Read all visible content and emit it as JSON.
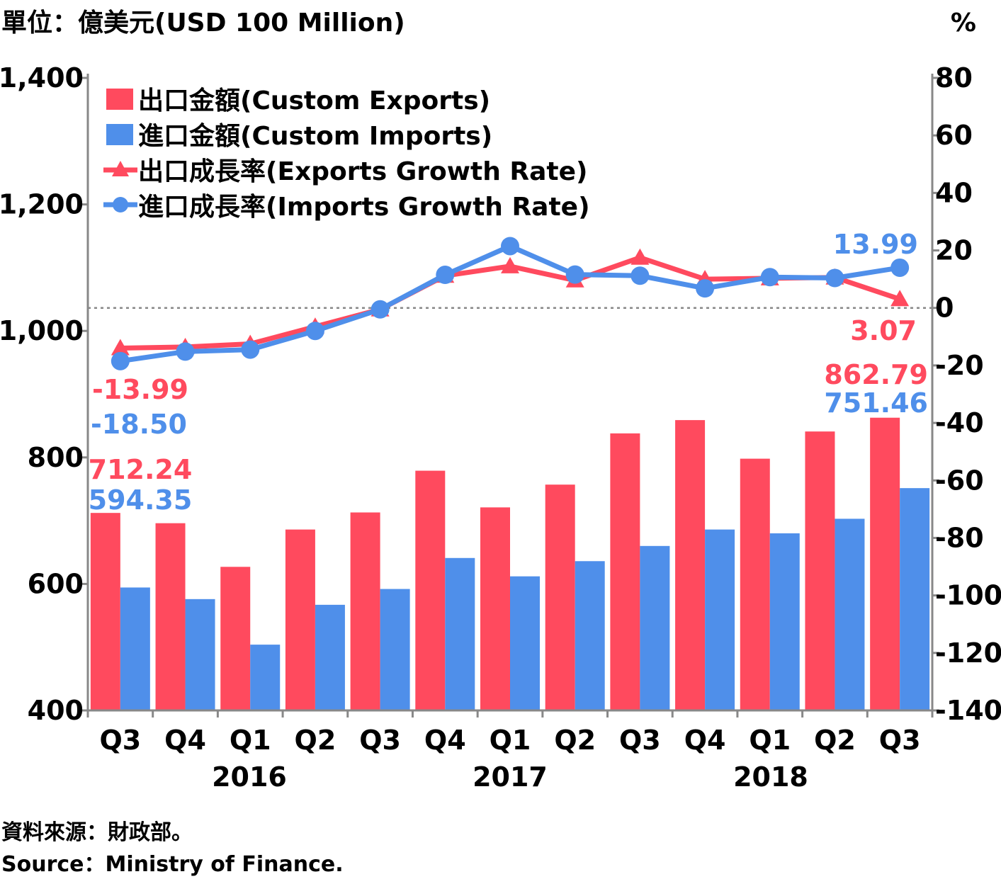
{
  "chart_data": {
    "type": "bar",
    "unit_label": "單位：億美元(USD 100 Million)",
    "right_unit_label": "%",
    "categories": [
      "Q3",
      "Q4",
      "Q1",
      "Q2",
      "Q3",
      "Q4",
      "Q1",
      "Q2",
      "Q3",
      "Q4",
      "Q1",
      "Q2",
      "Q3"
    ],
    "years": [
      "2016",
      "2017",
      "2018"
    ],
    "ylim": [
      400,
      1400
    ],
    "y2lim": [
      -140,
      80
    ],
    "yticks": [
      "400",
      "600",
      "800",
      "1,000",
      "1,200",
      "1,400"
    ],
    "y2ticks": [
      "-140",
      "-120",
      "-100",
      "-80",
      "-60",
      "-40",
      "-20",
      "0",
      "20",
      "40",
      "60",
      "80"
    ],
    "series": [
      {
        "name": "出口金額(Custom Exports)",
        "kind": "bar",
        "axis": "left",
        "color": "#ff4a5e",
        "values": [
          712.24,
          696,
          627,
          686,
          713,
          779,
          721,
          757,
          838,
          859,
          798,
          841,
          862.79
        ]
      },
      {
        "name": "進口金額(Custom Imports)",
        "kind": "bar",
        "axis": "left",
        "color": "#4f8fea",
        "values": [
          594.35,
          576,
          504,
          567,
          592,
          641,
          612,
          636,
          660,
          686,
          680,
          703,
          751.46
        ]
      },
      {
        "name": "出口成長率(Exports Growth Rate)",
        "kind": "line",
        "axis": "right",
        "color": "#ff4a5e",
        "marker": "triangle",
        "values": [
          -13.99,
          -13.6,
          -12.5,
          -6.5,
          -0.5,
          11.2,
          14.5,
          9.6,
          17.5,
          10.0,
          10.3,
          10.6,
          3.07
        ]
      },
      {
        "name": "進口成長率(Imports Growth Rate)",
        "kind": "line",
        "axis": "right",
        "color": "#4f8fea",
        "marker": "circle",
        "values": [
          -18.5,
          -15.2,
          -14.5,
          -8.0,
          -0.5,
          11.5,
          21.5,
          11.6,
          11.2,
          6.8,
          10.7,
          10.4,
          13.99
        ]
      }
    ],
    "data_labels": {
      "first": {
        "exports": "712.24",
        "imports": "594.35",
        "exports_rate": "-13.99",
        "imports_rate": "-18.50"
      },
      "last": {
        "exports": "862.79",
        "imports": "751.46",
        "exports_rate": "3.07",
        "imports_rate": "13.99"
      }
    },
    "source_zh": "資料來源：財政部。",
    "source_en": "Source：Ministry of Finance."
  }
}
